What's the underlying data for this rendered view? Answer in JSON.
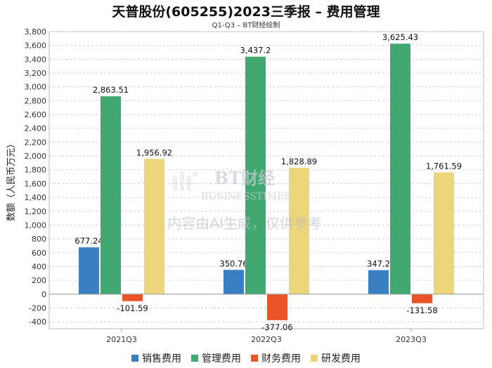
{
  "title": "天普股份(605255)2023三季报 – 费用管理",
  "subtitle": "Q1-Q3 – BT财经绘制",
  "watermark": {
    "brand": "BT财经",
    "brand_en": "BUSINESSTIMES",
    "notice": "内容由AI生成，仅供参考"
  },
  "chart_data": {
    "type": "bar",
    "ylabel": "数额（人民币万元）",
    "xlabel": "",
    "ylim": [
      -500,
      3800
    ],
    "yticks": [
      -400,
      -200,
      0,
      200,
      400,
      600,
      800,
      1000,
      1200,
      1400,
      1600,
      1800,
      2000,
      2200,
      2400,
      2600,
      2800,
      3000,
      3200,
      3400,
      3600,
      3800
    ],
    "grid": true,
    "legend_position": "bottom",
    "categories": [
      "2021Q3",
      "2022Q3",
      "2023Q3"
    ],
    "series": [
      {
        "name": "销售费用",
        "color": "#3a7fc1",
        "values": [
          677.24,
          350.76,
          347.2
        ],
        "labels": [
          "677.24",
          "350.76",
          "347.2"
        ]
      },
      {
        "name": "管理费用",
        "color": "#42a871",
        "values": [
          2863.51,
          3437.2,
          3625.43
        ],
        "labels": [
          "2,863.51",
          "3,437.2",
          "3,625.43"
        ]
      },
      {
        "name": "财务费用",
        "color": "#ea5528",
        "values": [
          -101.59,
          -377.06,
          -131.58
        ],
        "labels": [
          "-101.59",
          "-377.06",
          "-131.58"
        ]
      },
      {
        "name": "研发费用",
        "color": "#ecd57a",
        "values": [
          1956.92,
          1828.89,
          1761.59
        ],
        "labels": [
          "1,956.92",
          "1,828.89",
          "1,761.59"
        ]
      }
    ]
  }
}
